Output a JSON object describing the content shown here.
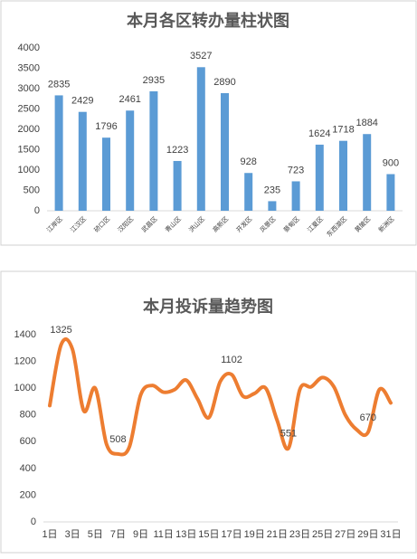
{
  "chart_data": [
    {
      "type": "bar",
      "title": "本月各区转办量柱状图",
      "categories": [
        "江岸区",
        "江汉区",
        "硚口区",
        "汉阳区",
        "武昌区",
        "青山区",
        "洪山区",
        "高新区",
        "开发区",
        "风景区",
        "蔡甸区",
        "江夏区",
        "东西湖区",
        "黄陂区",
        "新洲区"
      ],
      "values": [
        2835,
        2429,
        1796,
        2461,
        2935,
        1223,
        3527,
        2890,
        928,
        235,
        723,
        1624,
        1718,
        1884,
        900
      ],
      "color": "#5b9bd5",
      "ylim": [
        0,
        4000
      ],
      "yticks": [
        0,
        500,
        1000,
        1500,
        2000,
        2500,
        3000,
        3500,
        4000
      ],
      "grid": false
    },
    {
      "type": "line",
      "title": "本月投诉量趋势图",
      "categories": [
        "1日",
        null,
        "3日",
        null,
        "5日",
        null,
        "7日",
        null,
        "9日",
        null,
        "11日",
        null,
        "13日",
        null,
        "15日",
        null,
        "17日",
        null,
        "19日",
        null,
        "21日",
        null,
        "23日",
        null,
        "25日",
        null,
        "27日",
        null,
        "29日",
        null,
        "31日"
      ],
      "values": [
        870,
        1325,
        1290,
        830,
        1000,
        580,
        508,
        560,
        950,
        1020,
        970,
        990,
        1060,
        920,
        780,
        1050,
        1102,
        940,
        960,
        1000,
        760,
        551,
        990,
        1010,
        1080,
        1010,
        800,
        690,
        670,
        990,
        890
      ],
      "value_labels": [
        null,
        "1325",
        null,
        null,
        null,
        null,
        "508",
        null,
        null,
        null,
        null,
        null,
        null,
        null,
        null,
        null,
        "1102",
        null,
        null,
        null,
        null,
        "551",
        null,
        null,
        null,
        null,
        null,
        null,
        "670",
        null,
        null
      ],
      "color": "#ed7d31",
      "ylim": [
        0,
        1400
      ],
      "yticks": [
        0,
        200,
        400,
        600,
        800,
        1000,
        1200,
        1400
      ],
      "grid": false
    }
  ]
}
